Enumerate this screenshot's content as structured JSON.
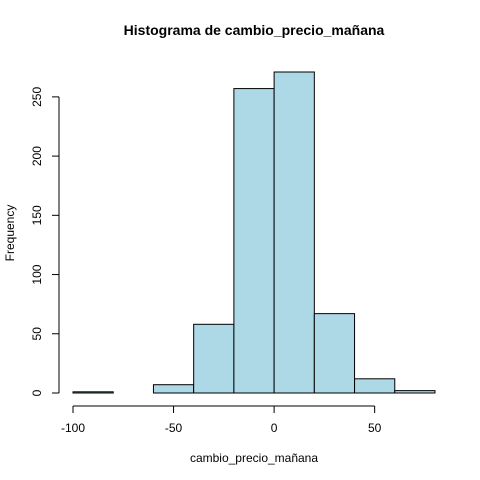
{
  "chart_data": {
    "type": "bar",
    "title": "Histograma de cambio_precio_mañana",
    "xlabel": "cambio_precio_mañana",
    "ylabel": "Frequency",
    "bin_edges": [
      -100,
      -80,
      -60,
      -40,
      -20,
      0,
      20,
      40,
      60,
      80
    ],
    "values": [
      1,
      0,
      7,
      58,
      257,
      271,
      67,
      12,
      2
    ],
    "xlim": [
      -100,
      80
    ],
    "ylim": [
      0,
      271
    ],
    "x_ticks": [
      -100,
      -50,
      0,
      50
    ],
    "x_tick_labels": [
      "-100",
      "-50",
      "0",
      "50"
    ],
    "y_ticks": [
      0,
      50,
      100,
      150,
      200,
      250
    ],
    "y_tick_labels": [
      "0",
      "50",
      "100",
      "150",
      "200",
      "250"
    ],
    "bar_color": "#add8e6",
    "edge_color": "#000000",
    "grid": false
  }
}
